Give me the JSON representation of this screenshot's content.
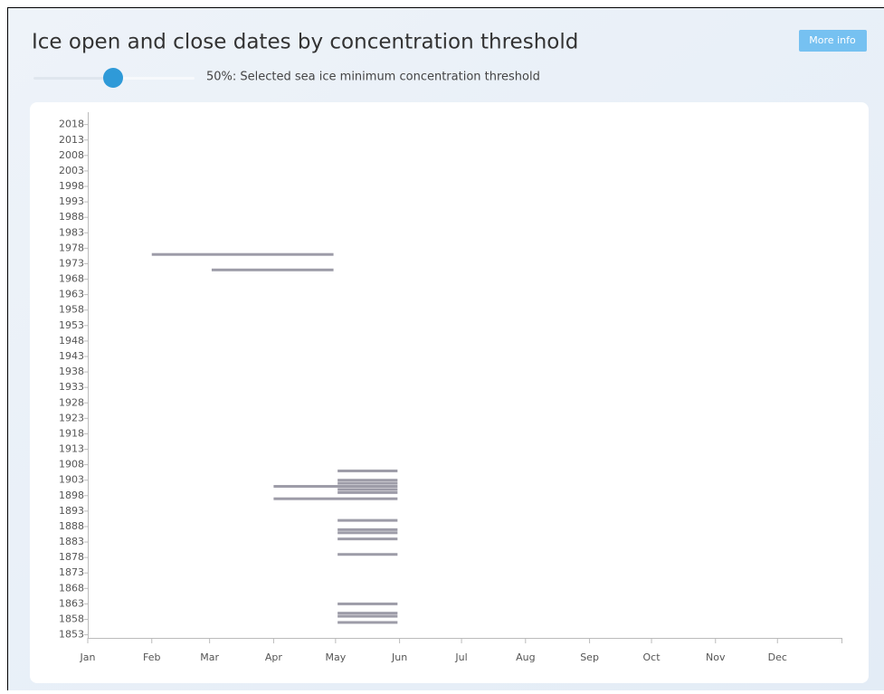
{
  "header": {
    "title": "Ice open and close dates by concentration threshold",
    "button": "More info",
    "slider_label": "50%: Selected sea ice minimum concentration threshold"
  },
  "chart_data": {
    "type": "range",
    "xlim": [
      0,
      365
    ],
    "xticks": [
      {
        "value": 0,
        "label": "Jan"
      },
      {
        "value": 31,
        "label": "Feb"
      },
      {
        "value": 59,
        "label": "Mar"
      },
      {
        "value": 90,
        "label": "Apr"
      },
      {
        "value": 120,
        "label": "May"
      },
      {
        "value": 151,
        "label": "Jun"
      },
      {
        "value": 181,
        "label": "Jul"
      },
      {
        "value": 212,
        "label": "Aug"
      },
      {
        "value": 243,
        "label": "Sep"
      },
      {
        "value": 273,
        "label": "Oct"
      },
      {
        "value": 304,
        "label": "Nov"
      },
      {
        "value": 334,
        "label": "Dec"
      }
    ],
    "ylim": [
      1852,
      2022
    ],
    "yticks": [
      1853,
      1858,
      1863,
      1868,
      1873,
      1878,
      1883,
      1888,
      1893,
      1898,
      1903,
      1908,
      1913,
      1918,
      1923,
      1928,
      1933,
      1938,
      1943,
      1948,
      1953,
      1958,
      1963,
      1968,
      1973,
      1978,
      1983,
      1988,
      1993,
      1998,
      2003,
      2008,
      2013,
      2018
    ],
    "color": "#9d9ca8",
    "bars": [
      {
        "year": 1976,
        "start": 31,
        "end": 119
      },
      {
        "year": 1971,
        "start": 60,
        "end": 119
      },
      {
        "year": 1906,
        "start": 121,
        "end": 150
      },
      {
        "year": 1903,
        "start": 121,
        "end": 150
      },
      {
        "year": 1902,
        "start": 121,
        "end": 150
      },
      {
        "year": 1901,
        "start": 90,
        "end": 150
      },
      {
        "year": 1900,
        "start": 121,
        "end": 150
      },
      {
        "year": 1899,
        "start": 121,
        "end": 150
      },
      {
        "year": 1897,
        "start": 90,
        "end": 150
      },
      {
        "year": 1890,
        "start": 121,
        "end": 150
      },
      {
        "year": 1887,
        "start": 121,
        "end": 150
      },
      {
        "year": 1886,
        "start": 121,
        "end": 150
      },
      {
        "year": 1884,
        "start": 121,
        "end": 150
      },
      {
        "year": 1879,
        "start": 121,
        "end": 150
      },
      {
        "year": 1863,
        "start": 121,
        "end": 150
      },
      {
        "year": 1860,
        "start": 121,
        "end": 150
      },
      {
        "year": 1859,
        "start": 121,
        "end": 150
      },
      {
        "year": 1857,
        "start": 121,
        "end": 150
      }
    ]
  }
}
